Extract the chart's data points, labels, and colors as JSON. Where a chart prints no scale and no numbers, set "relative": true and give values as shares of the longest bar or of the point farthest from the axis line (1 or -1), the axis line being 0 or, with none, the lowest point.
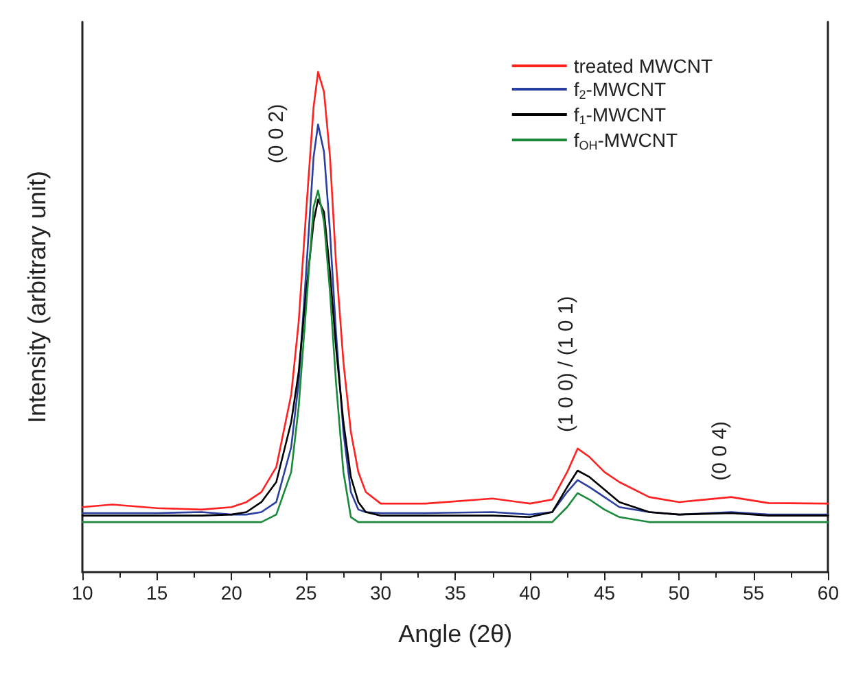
{
  "chart_data": {
    "type": "line",
    "xlabel": "Angle (2θ)",
    "ylabel": "Intensity (arbitrary unit)",
    "relative": true,
    "xlim": [
      10,
      60
    ],
    "xticks": [
      10,
      15,
      20,
      25,
      30,
      35,
      40,
      45,
      50,
      55,
      60
    ],
    "x": [
      10,
      12,
      15,
      18,
      20,
      21,
      22,
      23,
      24,
      24.5,
      25,
      25.5,
      25.8,
      26.2,
      26.6,
      27,
      27.5,
      28,
      28.5,
      29,
      30,
      33,
      37.5,
      40,
      41.5,
      42.5,
      43.2,
      44,
      45,
      46,
      48,
      50,
      53.5,
      56,
      60
    ],
    "series": [
      {
        "name": "treated MWCNT",
        "color": "#ff2020",
        "values": [
          0.13,
          0.135,
          0.128,
          0.125,
          0.13,
          0.14,
          0.16,
          0.21,
          0.355,
          0.5,
          0.72,
          0.93,
          1.0,
          0.96,
          0.83,
          0.62,
          0.42,
          0.28,
          0.2,
          0.16,
          0.137,
          0.137,
          0.147,
          0.137,
          0.145,
          0.2,
          0.247,
          0.23,
          0.2,
          0.18,
          0.15,
          0.14,
          0.15,
          0.138,
          0.137
        ]
      },
      {
        "name": "f$_{2}$-MWCNT",
        "color": "#2b3f9e",
        "values": [
          0.118,
          0.118,
          0.118,
          0.12,
          0.115,
          0.115,
          0.12,
          0.14,
          0.25,
          0.38,
          0.6,
          0.83,
          0.895,
          0.84,
          0.68,
          0.48,
          0.28,
          0.16,
          0.125,
          0.12,
          0.118,
          0.118,
          0.12,
          0.115,
          0.12,
          0.16,
          0.184,
          0.17,
          0.15,
          0.13,
          0.12,
          0.115,
          0.12,
          0.115,
          0.115
        ]
      },
      {
        "name": "f$_{1}$-MWCNT",
        "color": "#000000",
        "values": [
          0.113,
          0.113,
          0.113,
          0.113,
          0.115,
          0.12,
          0.14,
          0.18,
          0.3,
          0.4,
          0.56,
          0.7,
          0.745,
          0.72,
          0.6,
          0.45,
          0.3,
          0.19,
          0.14,
          0.12,
          0.113,
          0.113,
          0.113,
          0.11,
          0.12,
          0.17,
          0.203,
          0.19,
          0.165,
          0.14,
          0.12,
          0.115,
          0.118,
          0.113,
          0.113
        ]
      },
      {
        "name": "f$_{OH}$-MWCNT",
        "color": "#1a8a3a",
        "values": [
          0.1,
          0.1,
          0.1,
          0.1,
          0.1,
          0.1,
          0.1,
          0.115,
          0.2,
          0.33,
          0.53,
          0.73,
          0.763,
          0.7,
          0.56,
          0.38,
          0.2,
          0.11,
          0.1,
          0.1,
          0.1,
          0.1,
          0.1,
          0.1,
          0.1,
          0.13,
          0.158,
          0.145,
          0.125,
          0.11,
          0.1,
          0.1,
          0.1,
          0.1,
          0.1
        ]
      }
    ],
    "annotations": [
      {
        "text": "(0 0 2)",
        "x": 25.8,
        "y": 1.0
      },
      {
        "text": "(1 0 0) / (1 0 1)",
        "x": 43.2,
        "y": 0.247
      },
      {
        "text": "(0 0 4)",
        "x": 53.5,
        "y": 0.15
      }
    ],
    "legend": "top right",
    "grid": false,
    "marker": "none",
    "line_style": "solid"
  }
}
